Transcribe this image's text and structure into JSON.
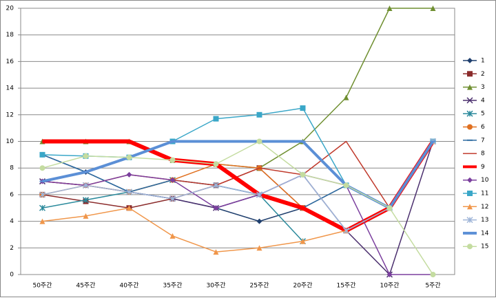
{
  "chart_data": {
    "type": "line",
    "categories": [
      "50주간",
      "45주간",
      "40주간",
      "35주간",
      "30주간",
      "25주간",
      "20주간",
      "15주간",
      "10주간",
      "5주간"
    ],
    "ylim": [
      0,
      20
    ],
    "yticks": [
      0,
      2,
      4,
      6,
      8,
      10,
      12,
      14,
      16,
      18,
      20
    ],
    "grid": true,
    "legend": "right",
    "series": [
      {
        "name": "1",
        "color": "#1f3f6e",
        "marker": "diamond",
        "width": 1.5,
        "values": [
          9,
          7.7,
          6.2,
          5.7,
          5,
          4,
          5,
          6.7,
          5,
          10
        ]
      },
      {
        "name": "2",
        "color": "#8b2b2b",
        "marker": "square",
        "width": 1.5,
        "values": [
          6,
          5.5,
          5,
          5.7,
          6.7,
          8,
          5,
          3.3,
          5,
          10
        ]
      },
      {
        "name": "3",
        "color": "#6f8f30",
        "marker": "triangle",
        "width": 1.5,
        "values": [
          10,
          10,
          10,
          8.6,
          8.3,
          8,
          10,
          13.3,
          20,
          20
        ]
      },
      {
        "name": "4",
        "color": "#4b2f6e",
        "marker": "x",
        "width": 1.5,
        "values": [
          7,
          6.7,
          6.2,
          5.7,
          5,
          6,
          7.5,
          3.3,
          0,
          10
        ]
      },
      {
        "name": "5",
        "color": "#2b8a9c",
        "marker": "star",
        "width": 1.5,
        "values": [
          5,
          5.6,
          6.2,
          7.1,
          6.7,
          6,
          2.5,
          null,
          null,
          null
        ]
      },
      {
        "name": "6",
        "color": "#e07020",
        "marker": "circle",
        "width": 1.5,
        "values": [
          6,
          6.7,
          6.2,
          7.1,
          8.3,
          8,
          5,
          3.3,
          5,
          10
        ]
      },
      {
        "name": "7",
        "color": "#2c6aa0",
        "marker": "dash",
        "width": 1.5,
        "values": [
          9,
          7.7,
          6.2,
          7.1,
          6.7,
          6,
          5,
          6.7,
          5,
          10
        ]
      },
      {
        "name": "8",
        "color": "#c0392b",
        "marker": "none",
        "width": 1.5,
        "values": [
          7,
          6.7,
          7.5,
          7.1,
          6.7,
          8,
          7.5,
          10,
          5,
          10
        ]
      },
      {
        "name": "9",
        "color": "#ff0000",
        "marker": "none",
        "width": 6,
        "values": [
          10,
          10,
          10,
          8.6,
          8.3,
          6,
          5,
          3.3,
          5,
          10
        ]
      },
      {
        "name": "10",
        "color": "#7b3f9e",
        "marker": "diamond",
        "width": 1.5,
        "values": [
          7,
          6.7,
          7.5,
          7.1,
          5,
          6,
          7.5,
          6.7,
          0,
          0
        ]
      },
      {
        "name": "11",
        "color": "#3aa7c8",
        "marker": "square",
        "width": 1.5,
        "values": [
          9,
          8.9,
          8.8,
          10,
          11.7,
          12,
          12.5,
          6.7,
          5,
          10
        ]
      },
      {
        "name": "12",
        "color": "#f0964a",
        "marker": "triangle",
        "width": 1.5,
        "values": [
          4,
          4.4,
          5,
          2.9,
          1.7,
          2,
          2.5,
          3.3,
          5,
          10
        ]
      },
      {
        "name": "13",
        "color": "#9fb5d8",
        "marker": "star",
        "width": 1.5,
        "values": [
          6,
          6.7,
          6.2,
          5.7,
          6.7,
          6,
          7.5,
          3.3,
          5,
          10
        ]
      },
      {
        "name": "14",
        "color": "#5b8fd6",
        "marker": "dash",
        "width": 4,
        "values": [
          7,
          7.7,
          8.8,
          10,
          10,
          10,
          10,
          6.7,
          5,
          10
        ]
      },
      {
        "name": "15",
        "color": "#c4dca0",
        "marker": "circle",
        "width": 1.5,
        "values": [
          8,
          8.9,
          8.8,
          8.6,
          8.3,
          10,
          7.5,
          6.7,
          5,
          0
        ]
      }
    ]
  }
}
